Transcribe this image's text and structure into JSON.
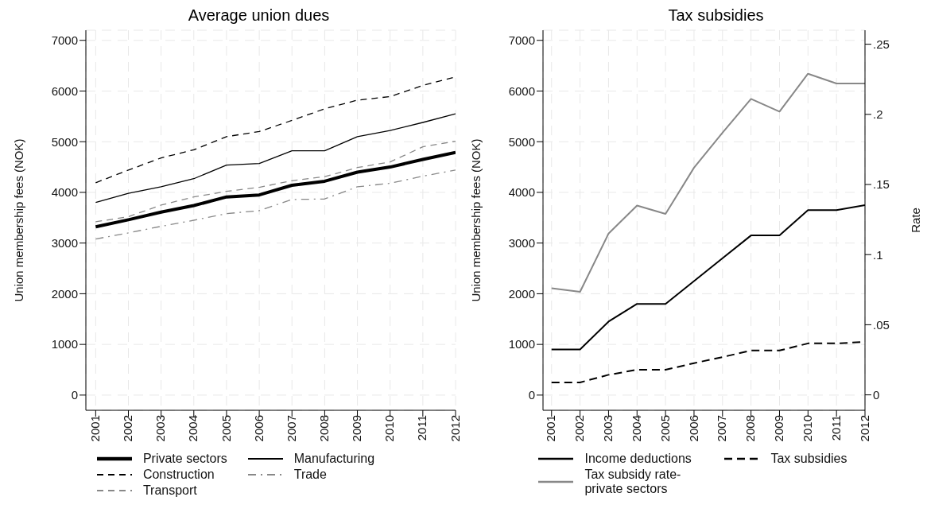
{
  "chart_data": [
    {
      "type": "line",
      "title": "Average union dues",
      "ylabel": "Union membership fees (NOK)",
      "categories": [
        "2001",
        "2002",
        "2003",
        "2004",
        "2005",
        "2006",
        "2007",
        "2008",
        "2009",
        "2010",
        "2011",
        "2012"
      ],
      "ylim": [
        -300,
        7200
      ],
      "yticks": [
        0,
        1000,
        2000,
        3000,
        4000,
        5000,
        6000,
        7000
      ],
      "grid": true,
      "legend": "bottom",
      "marker": "none",
      "series": [
        {
          "name": "Private sectors",
          "color": "#000000",
          "line_style": "solid",
          "values": [
            3320,
            3460,
            3610,
            3740,
            3910,
            3950,
            4140,
            4220,
            4400,
            4500,
            4650,
            4790
          ]
        },
        {
          "name": "Manufacturing",
          "color": "#000000",
          "line_style": "solid",
          "values": [
            3800,
            3980,
            4110,
            4270,
            4540,
            4570,
            4820,
            4820,
            5100,
            5220,
            5380,
            5550
          ]
        },
        {
          "name": "Construction",
          "color": "#000000",
          "line_style": "dashed",
          "values": [
            4190,
            4440,
            4680,
            4840,
            5100,
            5200,
            5420,
            5650,
            5820,
            5890,
            6110,
            6280
          ]
        },
        {
          "name": "Trade",
          "color": "#888888",
          "line_style": "dashdot",
          "values": [
            3080,
            3200,
            3330,
            3450,
            3580,
            3640,
            3860,
            3870,
            4110,
            4180,
            4320,
            4440
          ]
        },
        {
          "name": "Transport",
          "color": "#888888",
          "line_style": "dashed",
          "values": [
            3420,
            3520,
            3750,
            3910,
            4020,
            4100,
            4230,
            4310,
            4490,
            4600,
            4900,
            5010
          ]
        }
      ]
    },
    {
      "type": "line",
      "title": "Tax subsidies",
      "ylabel": "Union membership fees (NOK)",
      "y2label": "Rate",
      "categories": [
        "2001",
        "2002",
        "2003",
        "2004",
        "2005",
        "2006",
        "2007",
        "2008",
        "2009",
        "2010",
        "2011",
        "2012"
      ],
      "ylim": [
        -300,
        7200
      ],
      "yticks": [
        0,
        1000,
        2000,
        3000,
        4000,
        5000,
        6000,
        7000
      ],
      "y2lim": [
        -0.011,
        0.26
      ],
      "y2ticks": [
        0,
        {
          "value": 0.05,
          "label": ".05"
        },
        {
          "value": 0.1,
          "label": ".1"
        },
        {
          "value": 0.15,
          "label": ".15"
        },
        {
          "value": 0.2,
          "label": ".2"
        },
        {
          "value": 0.25,
          "label": ".25"
        }
      ],
      "grid": true,
      "legend": "bottom",
      "marker": "none",
      "series": [
        {
          "name": "Income deductions",
          "color": "#000000",
          "line_style": "solid",
          "values": [
            900,
            900,
            1450,
            1800,
            1800,
            2250,
            2700,
            3150,
            3150,
            3650,
            3650,
            3750
          ]
        },
        {
          "name": "Tax subsidies",
          "color": "#000000",
          "line_style": "dashed",
          "values": [
            250,
            250,
            400,
            500,
            500,
            630,
            750,
            880,
            880,
            1020,
            1020,
            1050
          ]
        },
        {
          "name": "Tax subsidy rate-private sectors",
          "color": "#888888",
          "line_style": "solid",
          "axis": "y2",
          "values": [
            0.076,
            0.0735,
            0.115,
            0.135,
            0.129,
            0.162,
            0.187,
            0.211,
            0.202,
            0.229,
            0.222,
            0.222
          ]
        }
      ]
    }
  ]
}
